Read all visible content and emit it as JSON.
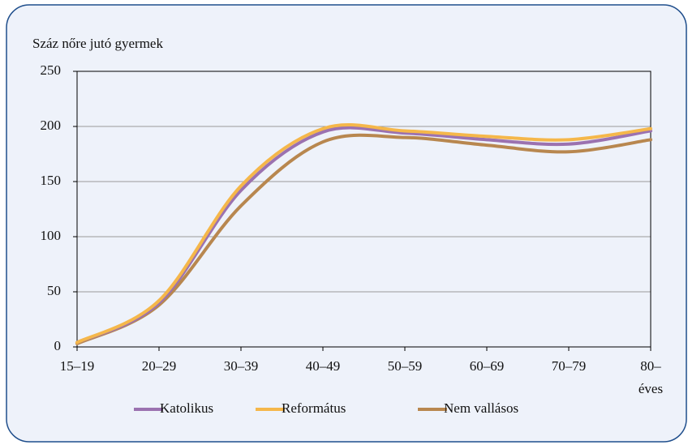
{
  "chart_data": {
    "type": "line",
    "title": "Száz nőre jutó gyermek",
    "categories": [
      "15–19",
      "20–29",
      "30–39",
      "40–49",
      "50–59",
      "60–69",
      "70–79",
      "80– éves"
    ],
    "series": [
      {
        "name": "Katolikus",
        "color": "#9b72b0",
        "values": [
          4,
          40,
          142,
          195,
          194,
          188,
          184,
          196
        ]
      },
      {
        "name": "Református",
        "color": "#f5b74a",
        "values": [
          4,
          42,
          146,
          198,
          196,
          191,
          188,
          198
        ]
      },
      {
        "name": "Nem vallásos",
        "color": "#b8874f",
        "values": [
          3,
          38,
          128,
          186,
          190,
          183,
          177,
          188
        ]
      }
    ],
    "ylim": [
      0,
      250
    ],
    "yticks": [
      0,
      50,
      100,
      150,
      200,
      250
    ],
    "grid": true
  }
}
